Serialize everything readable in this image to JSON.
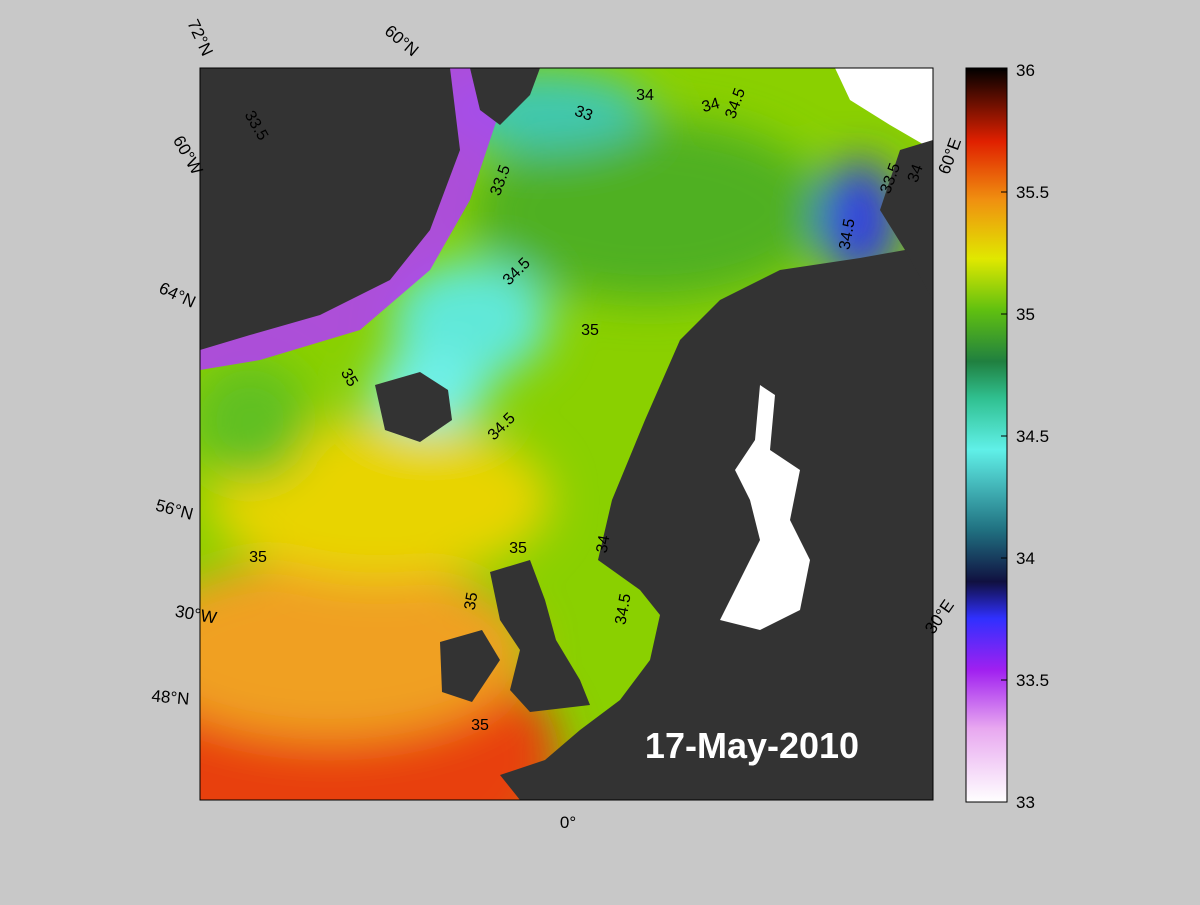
{
  "title": "17-May-2010",
  "colorbar": {
    "lim": [
      33,
      36
    ],
    "ticks": [
      33,
      33.5,
      34,
      34.5,
      35,
      35.5,
      36
    ]
  },
  "graticule_labels": [
    "72°N",
    "60°N",
    "60°W",
    "64°N",
    "56°N",
    "30°W",
    "48°N",
    "0°",
    "30°E",
    "60°E"
  ],
  "contour_labels": [
    "33.5",
    "33.5",
    "33",
    "34",
    "34",
    "34.5",
    "34.5",
    "35",
    "34.5",
    "35",
    "35",
    "35",
    "34",
    "35",
    "34.5",
    "35",
    "33.5",
    "34",
    "34.5"
  ]
}
